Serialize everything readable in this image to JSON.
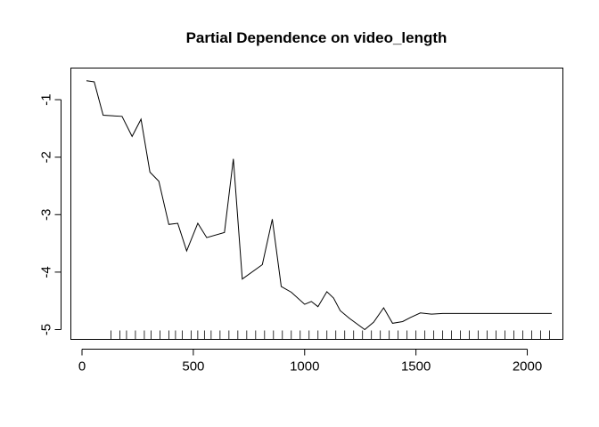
{
  "chart_data": {
    "type": "line",
    "title": "Partial Dependence on video_length",
    "xlabel": "",
    "ylabel": "",
    "xlim": [
      -50,
      2160
    ],
    "ylim": [
      -5.17,
      -0.45
    ],
    "x_ticks": [
      0,
      500,
      1000,
      1500,
      2000
    ],
    "y_ticks": [
      -1,
      -2,
      -3,
      -4,
      -5
    ],
    "x_tick_labels": [
      "0",
      "500",
      "1000",
      "1500",
      "2000"
    ],
    "y_tick_labels": [
      "-1",
      "-2",
      "-3",
      "-4",
      "-5"
    ],
    "grid": false,
    "series": [
      {
        "name": "",
        "x": [
          20,
          55,
          95,
          180,
          225,
          265,
          305,
          345,
          390,
          430,
          470,
          520,
          560,
          640,
          680,
          720,
          810,
          855,
          895,
          940,
          1000,
          1030,
          1060,
          1100,
          1130,
          1160,
          1200,
          1270,
          1310,
          1355,
          1395,
          1440,
          1475,
          1520,
          1570,
          1620,
          1700,
          1800,
          1900,
          2000,
          2110
        ],
        "y": [
          -0.67,
          -0.69,
          -1.27,
          -1.29,
          -1.64,
          -1.34,
          -2.26,
          -2.42,
          -3.17,
          -3.15,
          -3.63,
          -3.15,
          -3.4,
          -3.31,
          -2.03,
          -4.12,
          -3.87,
          -3.08,
          -4.25,
          -4.35,
          -4.56,
          -4.51,
          -4.6,
          -4.34,
          -4.45,
          -4.67,
          -4.8,
          -5.0,
          -4.87,
          -4.62,
          -4.89,
          -4.86,
          -4.79,
          -4.71,
          -4.73,
          -4.72,
          -4.72,
          -4.72,
          -4.72,
          -4.72,
          -4.72
        ]
      }
    ],
    "rug": [
      130,
      170,
      200,
      240,
      280,
      310,
      350,
      390,
      420,
      450,
      490,
      520,
      550,
      580,
      620,
      660,
      700,
      740,
      780,
      820,
      860,
      900,
      940,
      980,
      1020,
      1060,
      1100,
      1140,
      1180,
      1220,
      1260,
      1300,
      1340,
      1380,
      1420,
      1460,
      1500,
      1540,
      1580,
      1620,
      1660,
      1700,
      1740,
      1780,
      1820,
      1860,
      1900,
      1940,
      1980,
      2020,
      2060,
      2100
    ]
  }
}
